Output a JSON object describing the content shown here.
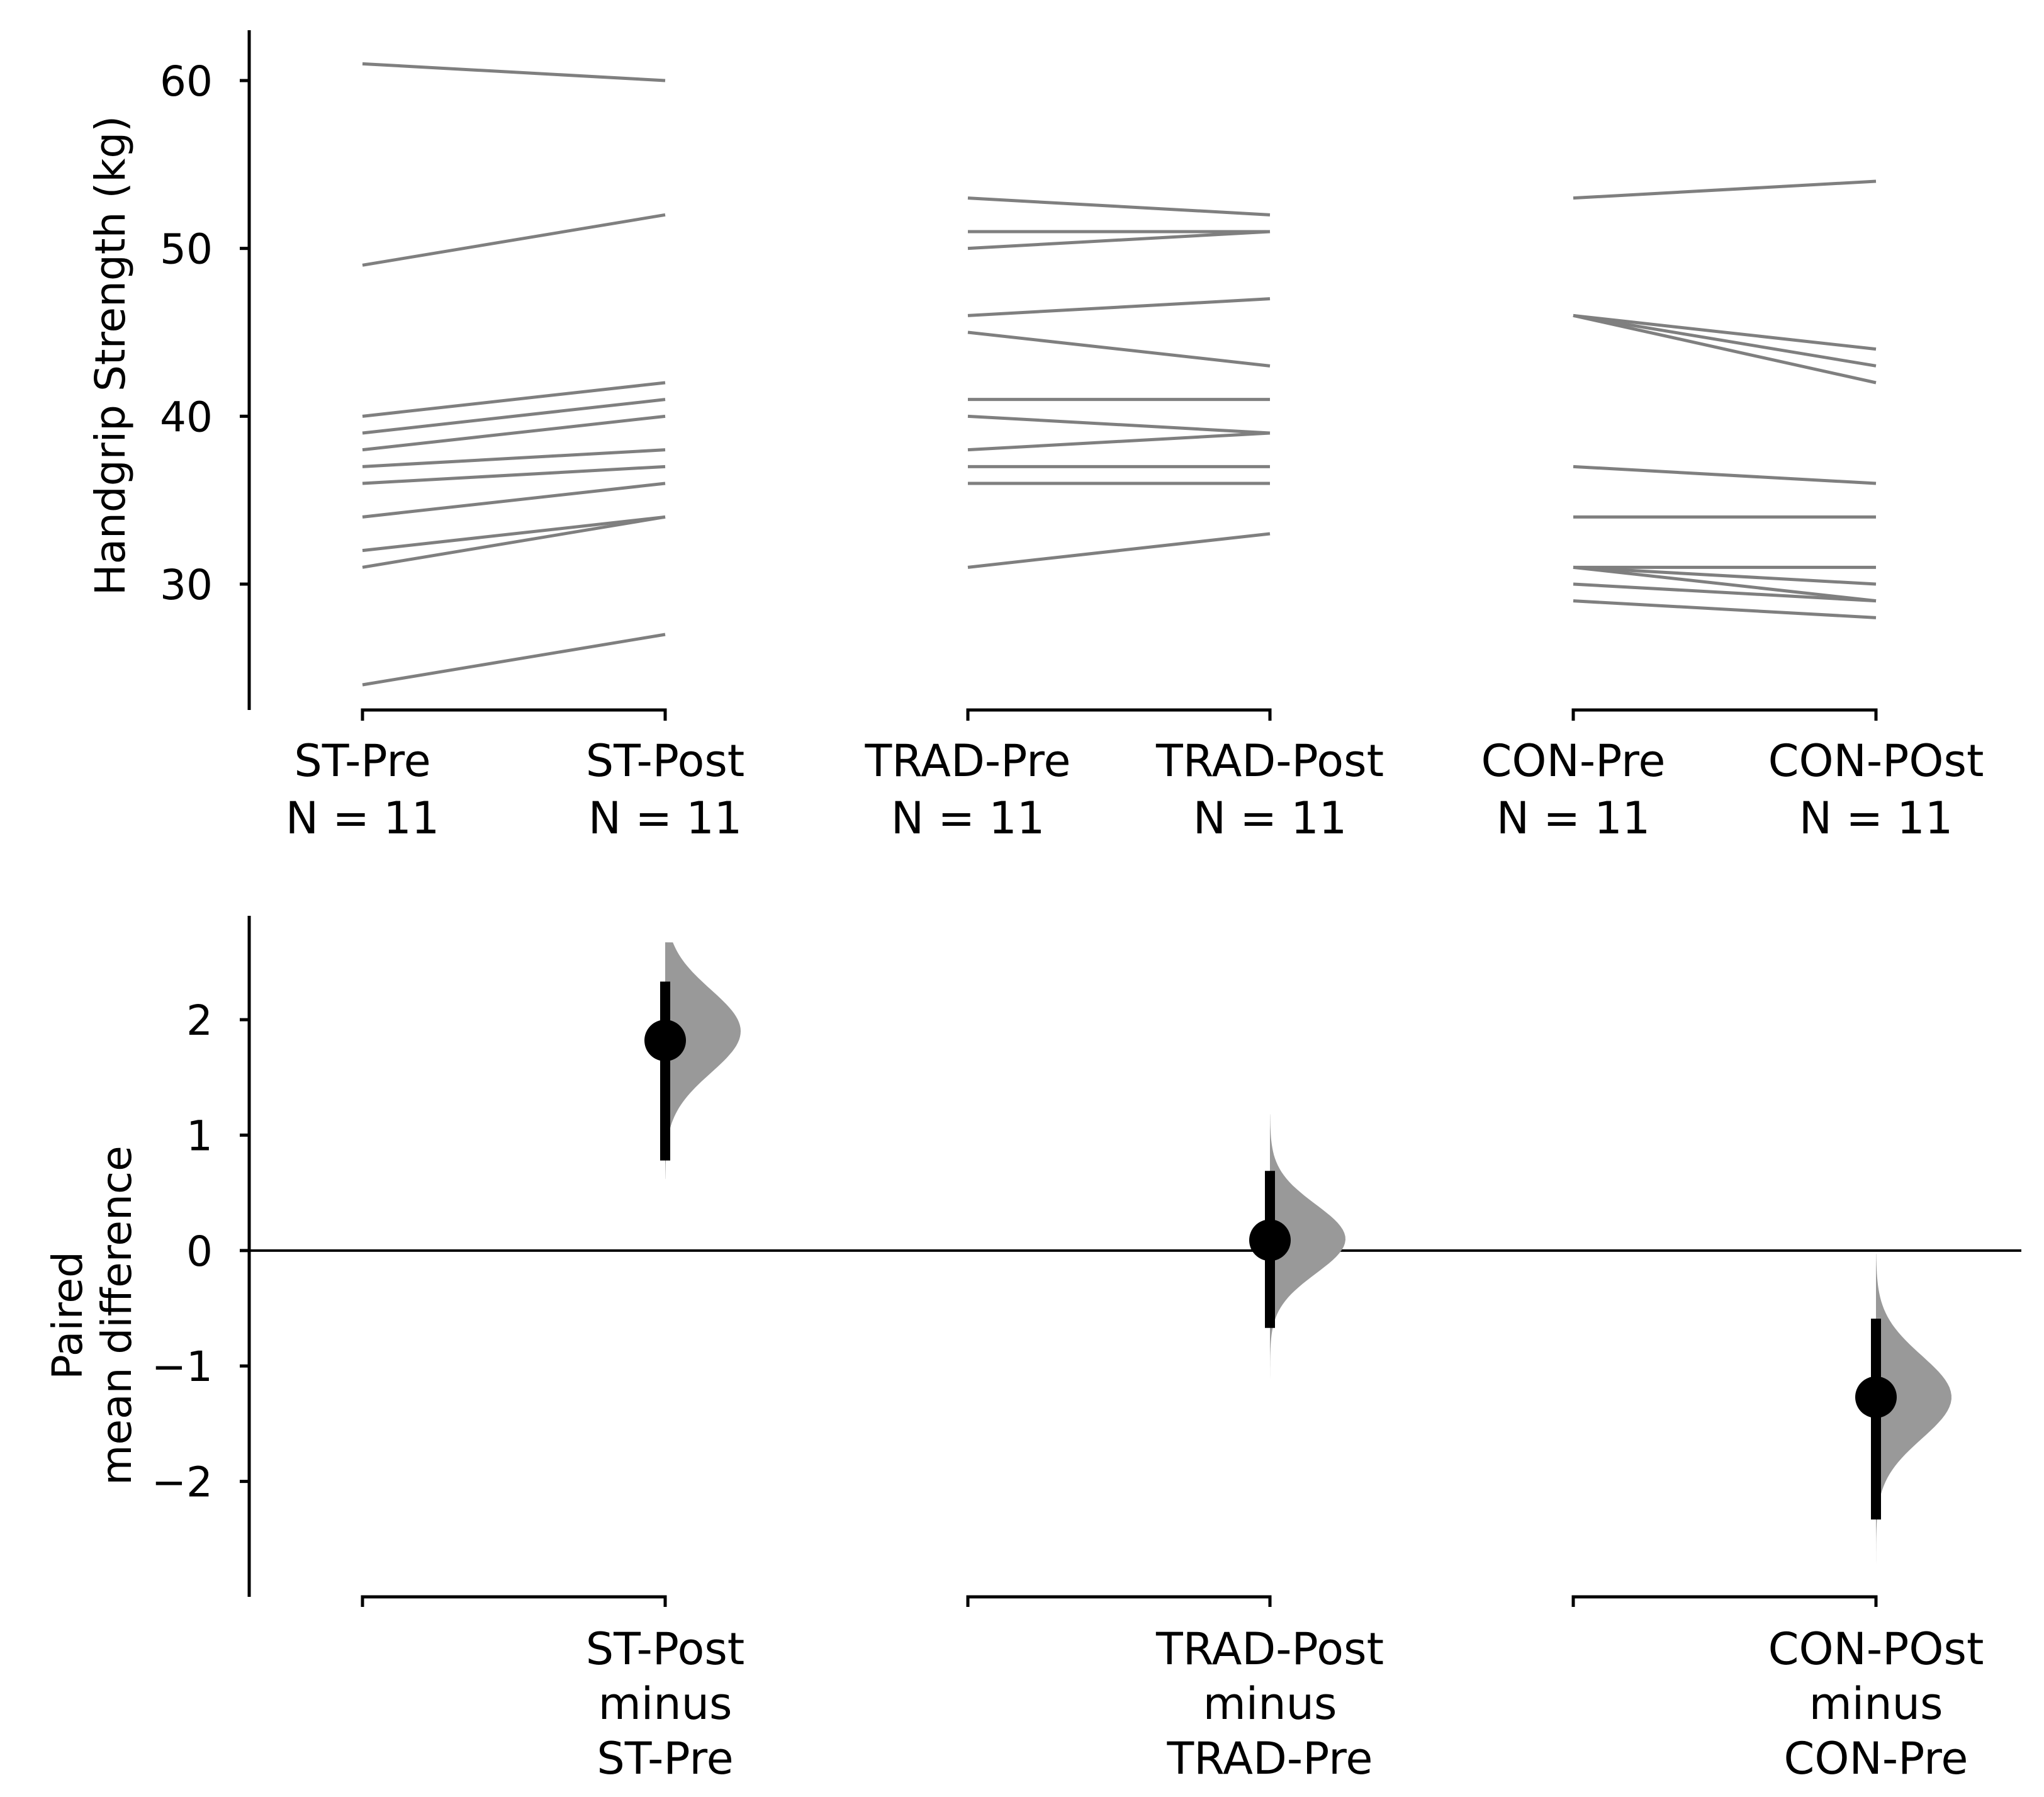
{
  "chart_data": [
    {
      "type": "slopegraph",
      "ylabel": "Handgrip Strength (kg)",
      "ylim": [
        22.5,
        63
      ],
      "yticks": [
        "30",
        "40",
        "50",
        "60"
      ],
      "groups": [
        {
          "pre_label": "ST-Pre",
          "post_label": "ST-Post",
          "pre_n": "N = 11",
          "post_n": "N = 11",
          "pairs": [
            [
              61,
              60
            ],
            [
              49,
              52
            ],
            [
              40,
              42
            ],
            [
              39,
              41
            ],
            [
              38,
              40
            ],
            [
              37,
              38
            ],
            [
              36,
              37
            ],
            [
              34,
              36
            ],
            [
              32,
              34
            ],
            [
              31,
              34
            ],
            [
              24,
              27
            ]
          ]
        },
        {
          "pre_label": "TRAD-Pre",
          "post_label": "TRAD-Post",
          "pre_n": "N = 11",
          "post_n": "N = 11",
          "pairs": [
            [
              53,
              52
            ],
            [
              51,
              51
            ],
            [
              50,
              51
            ],
            [
              46,
              47
            ],
            [
              45,
              43
            ],
            [
              41,
              41
            ],
            [
              40,
              39
            ],
            [
              38,
              39
            ],
            [
              37,
              37
            ],
            [
              36,
              36
            ],
            [
              31,
              33
            ]
          ]
        },
        {
          "pre_label": "CON-Pre",
          "post_label": "CON-POst",
          "pre_n": "N = 11",
          "post_n": "N = 11",
          "pairs": [
            [
              53,
              54
            ],
            [
              46,
              44
            ],
            [
              46,
              43
            ],
            [
              46,
              42
            ],
            [
              37,
              36
            ],
            [
              34,
              34
            ],
            [
              31,
              31
            ],
            [
              31,
              30
            ],
            [
              31,
              29
            ],
            [
              30,
              29
            ],
            [
              29,
              28
            ]
          ]
        }
      ]
    },
    {
      "type": "estimation",
      "ylabel": "Paired\nmean difference",
      "ylim": [
        -3.0,
        2.9
      ],
      "yticks": [
        "−2",
        "−1",
        "0",
        "1",
        "2"
      ],
      "zero_line": true,
      "contrasts": [
        {
          "label": [
            "ST-Post",
            "minus",
            "ST-Pre"
          ],
          "mean": 1.82,
          "ci": [
            0.78,
            2.33
          ],
          "dist_range": [
            0.62,
            2.67
          ],
          "mode": 1.9,
          "sd": 0.36
        },
        {
          "label": [
            "TRAD-Post",
            "minus",
            "TRAD-Pre"
          ],
          "mean": 0.09,
          "ci": [
            -0.67,
            0.69
          ],
          "dist_range": [
            -1.17,
            1.18
          ],
          "mode": 0.1,
          "sd": 0.3
        },
        {
          "label": [
            "CON-POst",
            "minus",
            "CON-Pre"
          ],
          "mean": -1.27,
          "ci": [
            -2.33,
            -0.59
          ],
          "dist_range": [
            -2.75,
            -0.03
          ],
          "mode": -1.27,
          "sd": 0.36
        }
      ]
    }
  ],
  "colors": {
    "pair_line": "#7f7f7f",
    "dist_fill": "#999999",
    "axis": "#000000",
    "point": "#000000"
  }
}
